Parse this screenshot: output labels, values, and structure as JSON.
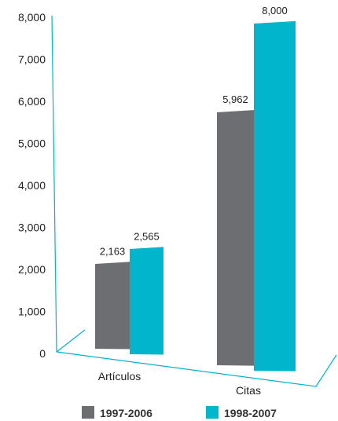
{
  "chart_data": {
    "type": "bar",
    "title": "",
    "xlabel": "",
    "ylabel": "",
    "ylim": [
      0,
      8000
    ],
    "yticks": [
      "0",
      "1,000",
      "2,000",
      "3,000",
      "4,000",
      "5,000",
      "6,000",
      "7,000",
      "8,000"
    ],
    "categories": [
      "Artículos",
      "Citas"
    ],
    "series": [
      {
        "name": "1997-2006",
        "values": [
          2163,
          5962
        ],
        "labels": [
          "2,163",
          "5,962"
        ],
        "color": "#6d6e71"
      },
      {
        "name": "1998-2007",
        "values": [
          2565,
          8000
        ],
        "labels": [
          "2,565",
          "8,000"
        ],
        "color": "#00b5cc"
      }
    ],
    "axis_color": "#00b5cc",
    "legend_position": "bottom",
    "grid": false,
    "style": "3d-perspective"
  }
}
